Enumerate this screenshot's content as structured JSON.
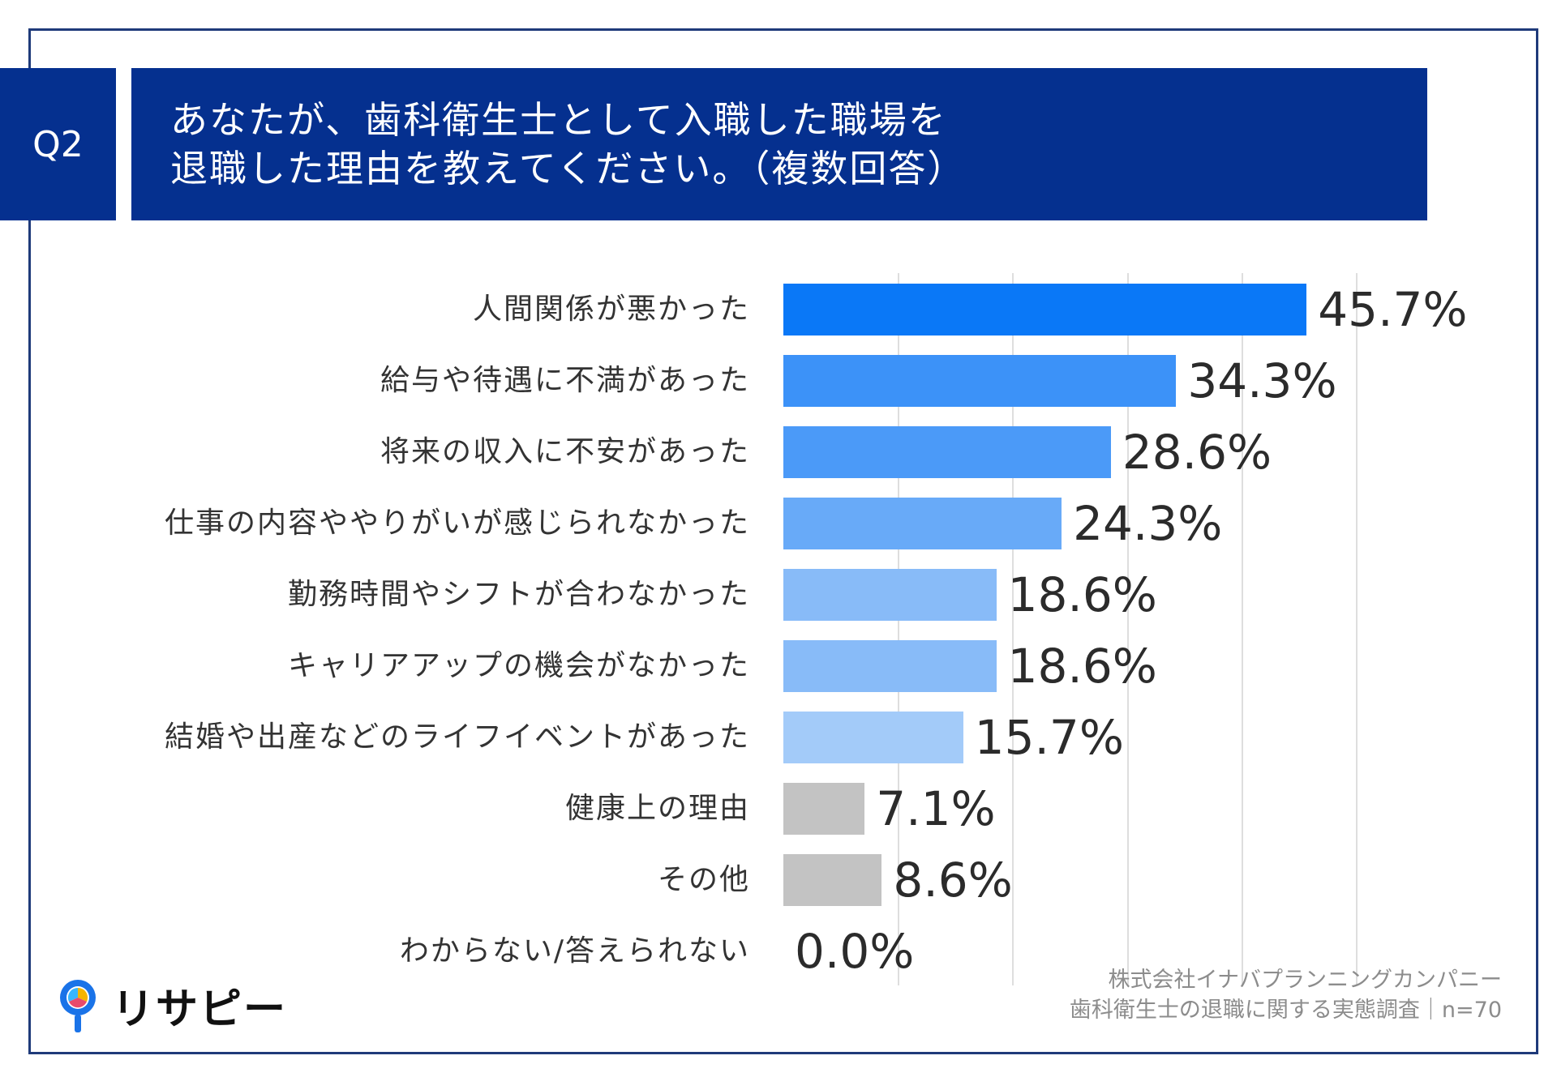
{
  "header": {
    "q_tag": "Q2",
    "title_line1": "あなたが、歯科衛生士として入職した職場を",
    "title_line2": "退職した理由を教えてください。（複数回答）"
  },
  "chart_data": {
    "type": "bar",
    "orientation": "horizontal",
    "categories": [
      "人間関係が悪かった",
      "給与や待遇に不満があった",
      "将来の収入に不安があった",
      "仕事の内容ややりがいが感じられなかった",
      "勤務時間やシフトが合わなかった",
      "キャリアアップの機会がなかった",
      "結婚や出産などのライフイベントがあった",
      "健康上の理由",
      "その他",
      "わからない/答えられない"
    ],
    "values": [
      45.7,
      34.3,
      28.6,
      24.3,
      18.6,
      18.6,
      15.7,
      7.1,
      8.6,
      0.0
    ],
    "value_labels": [
      "45.7%",
      "34.3%",
      "28.6%",
      "24.3%",
      "18.6%",
      "18.6%",
      "15.7%",
      "7.1%",
      "8.6%",
      "0.0%"
    ],
    "colors": [
      "#0a78f7",
      "#3c92f8",
      "#4b9af8",
      "#68aaf8",
      "#88bbf8",
      "#88bbf8",
      "#a3cbf9",
      "#c3c3c3",
      "#c3c3c3",
      "#c3c3c3"
    ],
    "xlim": [
      0,
      55
    ],
    "grid_values": [
      10,
      20,
      30,
      40,
      50
    ],
    "unit": "%"
  },
  "footer": {
    "company": "株式会社イナバプランニングカンパニー",
    "survey": "歯科衛生士の退職に関する実態調査｜n=70"
  },
  "logo": {
    "text": "リサピー",
    "icon": "pin-logo-icon"
  }
}
